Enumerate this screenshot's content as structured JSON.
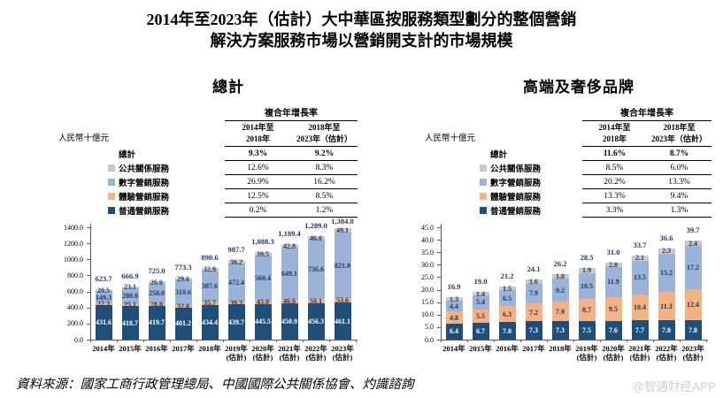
{
  "page": {
    "title_line1": "2014年至2023年（估計）大中華區按服務類型劃分的整個營銷",
    "title_line2": "解決方案服務市場以營銷開支計的市場規模",
    "source": "資料來源：國家工商行政管理總局、中國國際公共關係協會、灼識諮詢",
    "watermark_at": "@",
    "watermark": "智通财经APP"
  },
  "colors": {
    "navy": "#1F4E79",
    "orange": "#F4B183",
    "light_blue": "#9CB3D9",
    "gray": "#C9C9C9",
    "label_navy": "#1F3864",
    "axis": "#595959",
    "watermark_gray": "#CFCFCF"
  },
  "chart_data": [
    {
      "type": "bar",
      "stacked": true,
      "title": "總計",
      "ylabel": "人民幣十億元",
      "ylim": [
        0,
        1400
      ],
      "ytick_step": 200,
      "legend_position": "left-of-cagr-table",
      "grid": false,
      "categories": [
        "2014年",
        "2015年",
        "2016年",
        "2017年",
        "2018年",
        "2019年",
        "2020年",
        "2021年",
        "2022年",
        "2023年"
      ],
      "categories_line2": [
        "",
        "",
        "",
        "",
        "",
        "(估計)",
        "(估計)",
        "(估計)",
        "(估計)",
        "(估計)"
      ],
      "series": [
        {
          "name": "普通營銷服務",
          "color": "#1F4E79",
          "label_color": "#FFFFFF",
          "values": [
            431.6,
            418.7,
            419.7,
            401.2,
            434.4,
            439.7,
            445.5,
            450.9,
            456.3,
            461.1
          ]
        },
        {
          "name": "體驗營銷服務",
          "color": "#F4B183",
          "label_color": "#1F3864",
          "values": [
            22.3,
            25.1,
            28.8,
            32.0,
            35.7,
            39.3,
            43.0,
            46.6,
            50.1,
            53.6
          ]
        },
        {
          "name": "數字營銷服務",
          "color": "#9CB3D9",
          "label_color": "#1F3864",
          "values": [
            149.3,
            200.0,
            250.0,
            310.6,
            387.6,
            472.4,
            560.4,
            649.1,
            736.6,
            821.0
          ]
        },
        {
          "name": "公共關係服務",
          "color": "#C9C9C9",
          "label_color": "#1F3864",
          "values": [
            20.5,
            23.1,
            26.6,
            29.6,
            32.9,
            36.2,
            39.5,
            42.8,
            46.0,
            49.1
          ]
        }
      ],
      "totals": [
        623.7,
        666.9,
        725.0,
        773.3,
        890.6,
        987.7,
        1088.3,
        1189.4,
        1289.0,
        1384.8
      ],
      "cagr_table": {
        "header": "複合年增長率",
        "col_headers": [
          [
            "2014年至",
            "2018年"
          ],
          [
            "2018年至",
            "2023年（估計）"
          ]
        ],
        "rows": [
          {
            "label": "總計",
            "bold": true,
            "swatch": null,
            "values": [
              "9.3%",
              "9.2%"
            ]
          },
          {
            "label": "公共關係服務",
            "bold": false,
            "swatch": "#C9C9C9",
            "values": [
              "12.6%",
              "8.3%"
            ]
          },
          {
            "label": "數字營銷服務",
            "bold": false,
            "swatch": "#9CB3D9",
            "values": [
              "26.9%",
              "16.2%"
            ]
          },
          {
            "label": "體驗營銷服務",
            "bold": false,
            "swatch": "#F4B183",
            "values": [
              "12.5%",
              "8.5%"
            ]
          },
          {
            "label": "普通營銷服務",
            "bold": false,
            "swatch": "#1F4E79",
            "values": [
              "0.2%",
              "1.2%"
            ]
          }
        ]
      }
    },
    {
      "type": "bar",
      "stacked": true,
      "title": "高端及奢侈品牌",
      "ylabel": "人民幣十億元",
      "ylim": [
        0,
        45
      ],
      "ytick_step": 5,
      "legend_position": "left-of-cagr-table",
      "grid": false,
      "categories": [
        "2014年",
        "2015年",
        "2016年",
        "2017年",
        "2018年",
        "2019年",
        "2020年",
        "2021年",
        "2022年",
        "2023年"
      ],
      "categories_line2": [
        "",
        "",
        "",
        "",
        "",
        "(估計)",
        "(估計)",
        "(估計)",
        "(估計)",
        "(估計)"
      ],
      "series": [
        {
          "name": "普通營銷服務",
          "color": "#1F4E79",
          "label_color": "#FFFFFF",
          "values": [
            6.4,
            6.7,
            7.0,
            7.3,
            7.3,
            7.5,
            7.6,
            7.7,
            7.8,
            7.8
          ]
        },
        {
          "name": "體驗營銷服務",
          "color": "#F4B183",
          "label_color": "#1F3864",
          "values": [
            4.8,
            5.5,
            6.3,
            7.2,
            7.9,
            8.7,
            9.5,
            10.4,
            11.3,
            12.4
          ]
        },
        {
          "name": "數字營銷服務",
          "color": "#9CB3D9",
          "label_color": "#1F3864",
          "values": [
            4.4,
            5.4,
            6.5,
            7.9,
            9.2,
            10.5,
            11.9,
            13.5,
            15.2,
            17.2
          ]
        },
        {
          "name": "公共關係服務",
          "color": "#C9C9C9",
          "label_color": "#1F3864",
          "values": [
            1.3,
            1.4,
            1.5,
            1.6,
            1.8,
            1.9,
            2.0,
            2.1,
            2.3,
            2.4
          ]
        }
      ],
      "totals": [
        16.9,
        19.0,
        21.2,
        24.1,
        26.2,
        28.5,
        31.0,
        33.7,
        36.6,
        39.7
      ],
      "cagr_table": {
        "header": "複合年增長率",
        "col_headers": [
          [
            "2014年至",
            "2018年"
          ],
          [
            "2018年至",
            "2023年（估計）"
          ]
        ],
        "rows": [
          {
            "label": "總計",
            "bold": true,
            "swatch": null,
            "values": [
              "11.6%",
              "8.7%"
            ]
          },
          {
            "label": "公共關係服務",
            "bold": false,
            "swatch": "#C9C9C9",
            "values": [
              "8.5%",
              "6.0%"
            ]
          },
          {
            "label": "數字營銷服務",
            "bold": false,
            "swatch": "#9CB3D9",
            "values": [
              "20.2%",
              "13.3%"
            ]
          },
          {
            "label": "體驗營銷服務",
            "bold": false,
            "swatch": "#F4B183",
            "values": [
              "13.3%",
              "9.4%"
            ]
          },
          {
            "label": "普通營銷服務",
            "bold": false,
            "swatch": "#1F4E79",
            "values": [
              "3.3%",
              "1.3%"
            ]
          }
        ]
      }
    }
  ]
}
